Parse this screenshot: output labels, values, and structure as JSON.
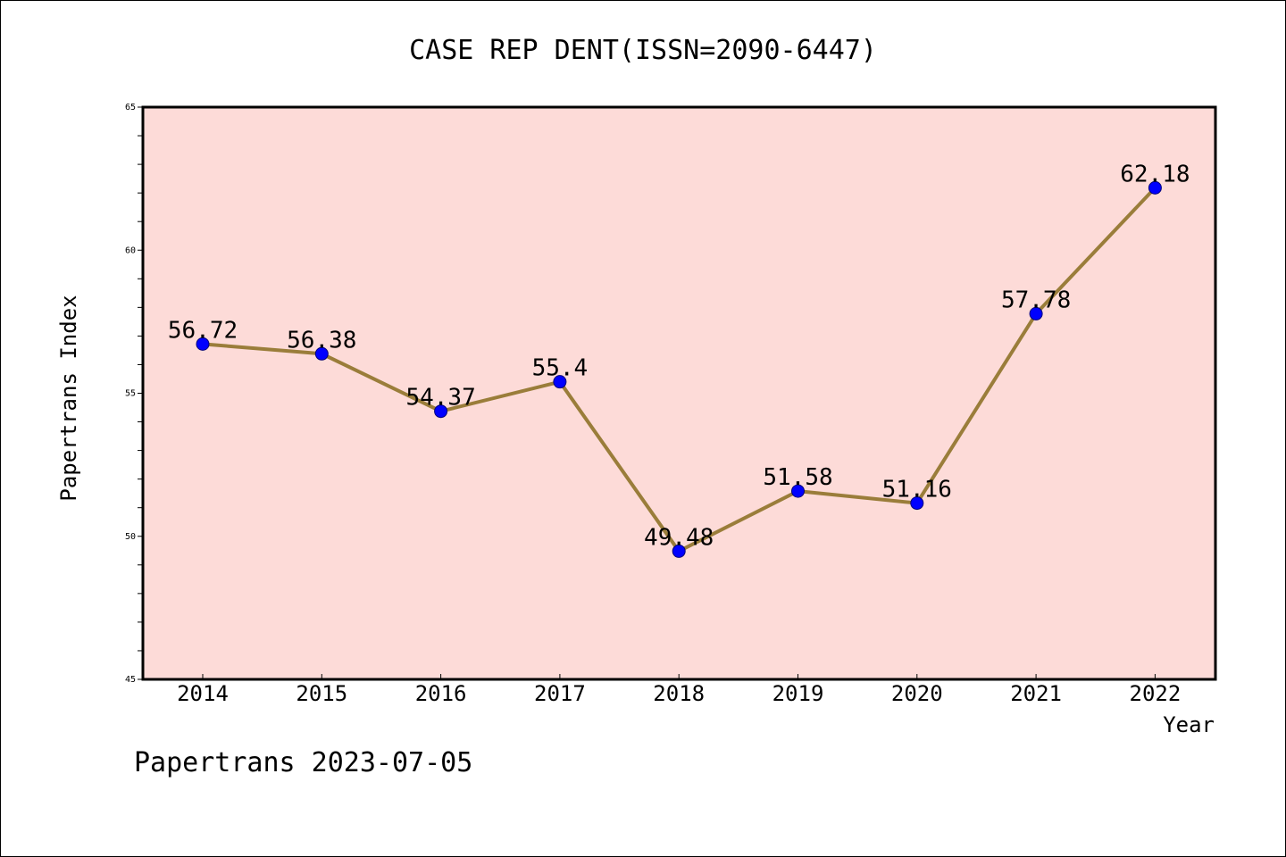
{
  "chart_data": {
    "type": "line",
    "title": "CASE REP DENT(ISSN=2090-6447)",
    "xlabel": "Year",
    "ylabel": "Papertrans Index",
    "x": [
      "2014",
      "2015",
      "2016",
      "2017",
      "2018",
      "2019",
      "2020",
      "2021",
      "2022"
    ],
    "series": [
      {
        "values": [
          56.72,
          56.38,
          54.37,
          55.4,
          49.48,
          51.58,
          51.16,
          57.78,
          62.18
        ],
        "labels": [
          "56.72",
          "56.38",
          "54.37",
          "55.4",
          "49.48",
          "51.58",
          "51.16",
          "57.78",
          "62.18"
        ]
      }
    ],
    "ylim": [
      45,
      65
    ],
    "yticks": [
      "45",
      "50",
      "55",
      "60",
      "65"
    ],
    "grid": false,
    "colors": {
      "plot_background": "#fddbd8",
      "line": "#9a7d3a",
      "marker": "#0000ff"
    }
  },
  "footer": "Papertrans 2023-07-05"
}
